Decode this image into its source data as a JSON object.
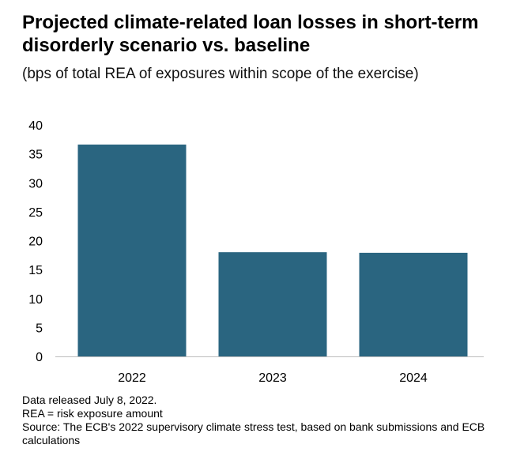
{
  "chart_data": {
    "type": "bar",
    "title": "Projected climate-related loan losses in short-term disorderly scenario vs. baseline",
    "subtitle": "(bps of total REA of exposures within scope of the exercise)",
    "xlabel": "",
    "ylabel": "",
    "categories": [
      "2022",
      "2023",
      "2024"
    ],
    "values": [
      36.6,
      18.0,
      17.9
    ],
    "ylim": [
      0,
      40
    ],
    "yticks": [
      0,
      5,
      10,
      15,
      20,
      25,
      30,
      35,
      40
    ],
    "grid": false,
    "legend": "none",
    "bar_color": "#2a6580"
  },
  "footnotes": {
    "released": "Data released July 8, 2022.",
    "definition": "REA = risk exposure amount",
    "source": "Source: The ECB's 2022 supervisory climate stress test, based on bank submissions and ECB calculations"
  }
}
